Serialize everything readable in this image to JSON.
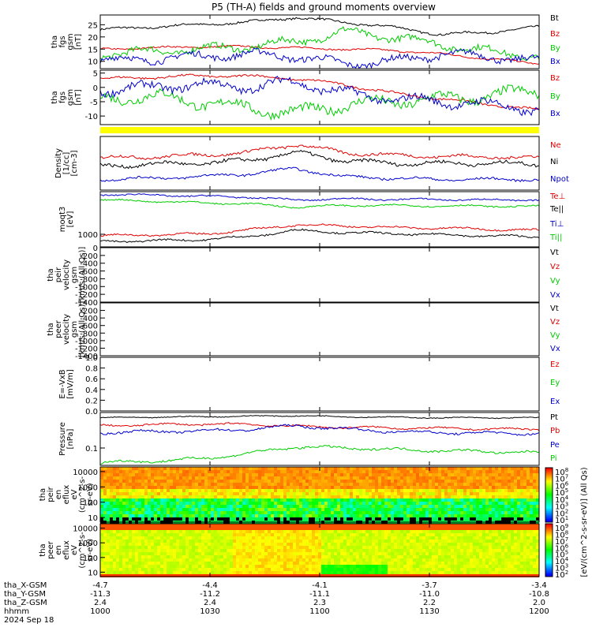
{
  "title": "P5 (TH-A) fields and ground moments overview",
  "colors": {
    "black": "#000000",
    "red": "#e00000",
    "green": "#00cc00",
    "blue": "#0000cc",
    "yellow": "#ffff00"
  },
  "chart_data": [
    {
      "type": "line",
      "ylabel": [
        "tha",
        "fgs",
        "gsm",
        "[nT]"
      ],
      "yticks": [
        10,
        15,
        20,
        25
      ],
      "ylim": [
        7,
        29
      ],
      "series": [
        {
          "name": "Bt",
          "color": "red_or_black_black",
          "base": [
            23,
            24,
            25,
            26,
            28,
            26,
            24,
            21,
            22,
            24
          ],
          "amp": 0.8
        },
        {
          "name": "Bz",
          "color": "red",
          "base": [
            15,
            15.5,
            16,
            16,
            15.5,
            15,
            14.5,
            13,
            11,
            9
          ],
          "amp": 0.6
        },
        {
          "name": "By",
          "color": "green",
          "base": [
            13,
            14,
            15,
            16,
            18,
            22,
            20,
            17,
            14,
            12
          ],
          "amp": 2.5
        },
        {
          "name": "Bx",
          "color": "blue",
          "base": [
            10,
            11,
            12,
            13,
            12,
            9,
            10,
            13,
            12,
            10
          ],
          "amp": 2.5
        }
      ]
    },
    {
      "type": "line",
      "ylabel": [
        "tha",
        "fgs",
        "gsm",
        "[nT]"
      ],
      "yticks": [
        -10,
        -5,
        0,
        5
      ],
      "ylim": [
        -13,
        6
      ],
      "series": [
        {
          "name": "Bz",
          "color": "red",
          "base": [
            3,
            3.5,
            4,
            4,
            3,
            1,
            -2,
            -4,
            -6,
            -8
          ],
          "amp": 0.7
        },
        {
          "name": "By",
          "color": "green",
          "base": [
            -4,
            -3,
            -5,
            -7,
            -9,
            -6,
            -5,
            -4,
            -3,
            -1
          ],
          "amp": 3
        },
        {
          "name": "Bx",
          "color": "blue",
          "base": [
            -1,
            0,
            1,
            0,
            2,
            -2,
            -4,
            -5,
            -6,
            -8
          ],
          "amp": 2.5
        }
      ]
    },
    {
      "type": "line",
      "ylabel": [
        "Density",
        "[1/cc]",
        "[cm-3]"
      ],
      "yticks": [],
      "ylim": [
        0,
        10
      ],
      "series": [
        {
          "name": "Ne",
          "color": "red",
          "base": [
            6,
            6.2,
            6.5,
            7,
            8.5,
            7,
            6.5,
            6.3,
            6.2,
            6
          ],
          "amp": 0.5
        },
        {
          "name": "Ni",
          "color": "black",
          "base": [
            4.5,
            4.8,
            5,
            5.5,
            7,
            5.5,
            5,
            5,
            5,
            4.8
          ],
          "amp": 0.6
        },
        {
          "name": "Npot",
          "color": "blue",
          "base": [
            2,
            2.2,
            2.5,
            3,
            4,
            2.5,
            2.2,
            2,
            2,
            2
          ],
          "amp": 0.4
        }
      ]
    },
    {
      "type": "line",
      "ylabel": [
        "moqt3",
        "[eV]"
      ],
      "yticks": [
        1000
      ],
      "ylim": [
        0,
        10
      ],
      "series": [
        {
          "name": "Te⊥",
          "color": "red",
          "base": [
            2,
            2.2,
            2.3,
            3,
            4,
            3.8,
            3.5,
            3.4,
            3.2,
            3
          ],
          "amp": 0.3
        },
        {
          "name": "Te||",
          "color": "black",
          "base": [
            1,
            1.1,
            1.3,
            1.8,
            3,
            2.6,
            2.4,
            2.2,
            2,
            1.8
          ],
          "amp": 0.3
        },
        {
          "name": "Ti⊥",
          "color": "blue",
          "base": [
            9.5,
            9.4,
            9.2,
            9,
            8.5,
            8.7,
            8.6,
            8.6,
            8.5,
            8.5
          ],
          "amp": 0.25
        },
        {
          "name": "Ti||",
          "color": "green",
          "base": [
            8.5,
            8.3,
            8,
            7.8,
            7.2,
            7.5,
            7.5,
            7.4,
            7.4,
            7.3
          ],
          "amp": 0.25
        }
      ]
    },
    {
      "type": "line",
      "ylabel": [
        "tha",
        "peir",
        "velocity",
        "gsm",
        "[km/s (All Qs)]"
      ],
      "yticks": [
        0,
        -200,
        -400,
        -600,
        -800,
        -1000,
        -1200,
        -1400
      ],
      "ylim": [
        -1400,
        0
      ],
      "series": [
        {
          "name": "Vt",
          "color": "black"
        },
        {
          "name": "Vz",
          "color": "red"
        },
        {
          "name": "Vy",
          "color": "green"
        },
        {
          "name": "Vx",
          "color": "blue"
        }
      ]
    },
    {
      "type": "line",
      "ylabel": [
        "tha",
        "peer",
        "velocity",
        "gsm",
        "[km/s (All Qs)]"
      ],
      "yticks": [
        -200,
        -400,
        -600,
        -800,
        -1000,
        -1200,
        -1400
      ],
      "ylim": [
        -1400,
        0
      ],
      "series": [
        {
          "name": "Vt",
          "color": "black"
        },
        {
          "name": "Vz",
          "color": "red"
        },
        {
          "name": "Vy",
          "color": "green"
        },
        {
          "name": "Vx",
          "color": "blue"
        }
      ]
    },
    {
      "type": "line",
      "ylabel": [
        "E=-VxB",
        "[mV/m]"
      ],
      "yticks": [
        0.0,
        0.2,
        0.4,
        0.6,
        0.8,
        1.0
      ],
      "ylim": [
        0,
        1
      ],
      "series": [
        {
          "name": "Ez",
          "color": "red"
        },
        {
          "name": "Ey",
          "color": "green"
        },
        {
          "name": "Ex",
          "color": "blue"
        }
      ]
    },
    {
      "type": "line",
      "ylabel": [
        "Pressure",
        "[nPa]"
      ],
      "yticks": [
        0.1
      ],
      "ylim": [
        0,
        10
      ],
      "series": [
        {
          "name": "Pt",
          "color": "black",
          "base": [
            9,
            9.1,
            9.2,
            9.3,
            9.4,
            9.2,
            9.1,
            9,
            9,
            9
          ],
          "amp": 0.15
        },
        {
          "name": "Pb",
          "color": "red",
          "base": [
            7.5,
            7.7,
            7.8,
            7.8,
            7.4,
            7.2,
            7.1,
            7.0,
            6.9,
            6.8
          ],
          "amp": 0.3
        },
        {
          "name": "Pe",
          "color": "blue",
          "base": [
            6.2,
            6.4,
            6.5,
            6.8,
            7.5,
            6.9,
            6.4,
            6.2,
            6.1,
            6
          ],
          "amp": 0.4
        },
        {
          "name": "Pi",
          "color": "green",
          "base": [
            0.5,
            0.8,
            1.2,
            2.2,
            3.5,
            3.3,
            3.0,
            2.8,
            2.6,
            2.4
          ],
          "amp": 0.4
        }
      ]
    },
    {
      "type": "heatmap",
      "ylabel": [
        "tha",
        "peir",
        "en",
        "eflux",
        "eV",
        "(cm^2-s-",
        "sr-eV)"
      ],
      "yticks": [
        10000,
        1000,
        100,
        10
      ],
      "ylim": [
        5,
        20000
      ]
    },
    {
      "type": "heatmap",
      "ylabel": [
        "tha",
        "peer",
        "en",
        "eflux",
        "eV",
        "(cm^2-s-",
        "sr-eV)"
      ],
      "yticks": [
        10000,
        1000,
        100,
        10
      ],
      "ylim": [
        5,
        20000
      ]
    }
  ],
  "colorbar": {
    "label": "[eV/(cm^2-s-sr-eV)] (All Qs)",
    "upper_ticks": [
      "10^8",
      "10^7",
      "10^6",
      "10^5",
      "10^4",
      "10^3",
      "10^2",
      "10^1"
    ],
    "lower_ticks": [
      "10^9",
      "10^8",
      "10^7",
      "10^6",
      "10^5",
      "10^4",
      "10^3",
      "10^2"
    ]
  },
  "footer": {
    "rows": [
      {
        "label": "tha_X-GSM",
        "values": [
          "-4.7",
          "-4.4",
          "-4.1",
          "-3.7",
          "-3.4"
        ]
      },
      {
        "label": "tha_Y-GSM",
        "values": [
          "-11.3",
          "-11.2",
          "-11.1",
          "-11.0",
          "-10.8"
        ]
      },
      {
        "label": "tha_Z-GSM",
        "values": [
          "2.4",
          "2.4",
          "2.3",
          "2.2",
          "2.0"
        ]
      },
      {
        "label": "hhmm",
        "values": [
          "1000",
          "1030",
          "1100",
          "1130",
          "1200"
        ]
      }
    ],
    "date": "2024 Sep 18"
  }
}
